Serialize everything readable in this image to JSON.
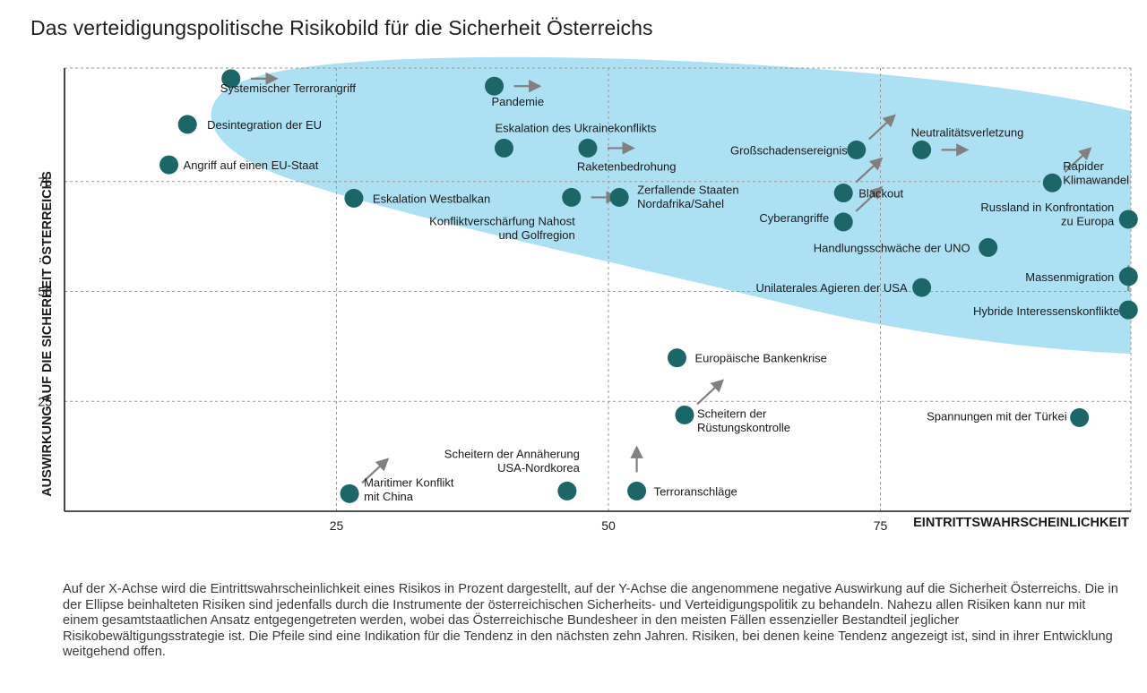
{
  "title": "Das verteidigungspolitische Risikobild für die Sicherheit Österreichs",
  "caption": "Auf der X-Achse wird die Eintrittswahrscheinlichkeit eines Risikos in Prozent dargestellt, auf der Y-Achse die angenommene negative Auswirkung auf die Sicherheit Österreichs. Die in der Ellipse beinhalteten Risiken sind jedenfalls durch die Instrumente der österreichischen Sicherheits- und Verteidigungspolitik zu behandeln. Nahezu allen Risiken kann nur mit einem gesamtstaatlichen Ansatz entgegengetreten werden, wobei das Österreichische Bundesheer in den meisten Fällen essenzieller Bestandteil jeglicher Risikobewältigungsstrategie ist. Die Pfeile sind eine Indikation für die Tendenz in den nächsten zehn Jahren. Risiken, bei denen keine Tendenz angezeigt ist, sind in ihrer Entwicklung weitgehend offen.",
  "colors": {
    "point": "#1d6668",
    "ellipse": "#aee0f3",
    "arrow": "#808080",
    "grid": "#9a9a9a",
    "axis": "#1a1a1a"
  },
  "chart_data": {
    "type": "scatter",
    "xlabel": "EINTRITTSWAHRSCHEINLICHKEIT",
    "ylabel": "AUSWIRKUNG AUF DIE SICHERHEIT ÖSTERREICHS",
    "xlim": [
      0,
      98
    ],
    "ylim": [
      0,
      100
    ],
    "xticks": [
      25,
      50,
      75
    ],
    "yticks": [
      25,
      50,
      75
    ],
    "grid": true,
    "points": [
      {
        "label": "Systemischer Terrorangriff",
        "x": 15.3,
        "y": 98.4,
        "trend": "right"
      },
      {
        "label": "Desintegration der EU",
        "x": 11.3,
        "y": 88.0,
        "trend": null
      },
      {
        "label": "Angriff auf einen EU-Staat",
        "x": 9.6,
        "y": 78.8,
        "trend": null
      },
      {
        "label": "Pandemie",
        "x": 39.5,
        "y": 96.7,
        "trend": "right"
      },
      {
        "label": "Eskalation des Ukrainekonflikts",
        "x": 40.4,
        "y": 82.6,
        "trend": null
      },
      {
        "label": "Raketenbedrohung",
        "x": 48.1,
        "y": 82.6,
        "trend": "right"
      },
      {
        "label": "Eskalation Westbalkan",
        "x": 26.6,
        "y": 71.2,
        "trend": null
      },
      {
        "label": "Konfliktverschärfung Nahost und Golfregion",
        "x": 46.6,
        "y": 71.4,
        "trend": "right"
      },
      {
        "label": "Zerfallende Staaten Nordafrika/Sahel",
        "x": 51.0,
        "y": 71.4,
        "trend": null
      },
      {
        "label": "Großschadensereignis",
        "x": 72.8,
        "y": 82.2,
        "trend": "up-right"
      },
      {
        "label": "Neutralitätsverletzung",
        "x": 78.8,
        "y": 82.2,
        "trend": "right"
      },
      {
        "label": "Blackout",
        "x": 71.6,
        "y": 72.4,
        "trend": "up-right"
      },
      {
        "label": "Cyberangriffe",
        "x": 71.6,
        "y": 65.8,
        "trend": "up-right"
      },
      {
        "label": "Rapider Klimawandel",
        "x": 90.8,
        "y": 74.7,
        "trend": "up-right"
      },
      {
        "label": "Russland in Konfrontation zu Europa",
        "x": 97.8,
        "y": 66.4,
        "trend": null
      },
      {
        "label": "Handlungsschwäche der UNO",
        "x": 84.9,
        "y": 60.0,
        "trend": null
      },
      {
        "label": "Massenmigration",
        "x": 97.8,
        "y": 53.4,
        "trend": null
      },
      {
        "label": "Unilaterales Agieren der USA",
        "x": 78.8,
        "y": 50.9,
        "trend": null
      },
      {
        "label": "Hybride Interessenskonflikte",
        "x": 97.8,
        "y": 45.8,
        "trend": "up"
      },
      {
        "label": "Europäische Bankenkrise",
        "x": 56.3,
        "y": 34.9,
        "trend": null
      },
      {
        "label": "Scheitern der Rüstungskontrolle",
        "x": 57.0,
        "y": 21.9,
        "trend": "up-right"
      },
      {
        "label": "Spannungen mit der Türkei",
        "x": 93.3,
        "y": 21.3,
        "trend": null
      },
      {
        "label": "Maritimer Konflikt mit China",
        "x": 26.2,
        "y": 4.0,
        "trend": "up-right"
      },
      {
        "label": "Scheitern der Annäherung USA-Nordkorea",
        "x": 46.2,
        "y": 4.6,
        "trend": null
      },
      {
        "label": "Terroranschläge",
        "x": 52.6,
        "y": 4.6,
        "trend": "up"
      }
    ]
  }
}
